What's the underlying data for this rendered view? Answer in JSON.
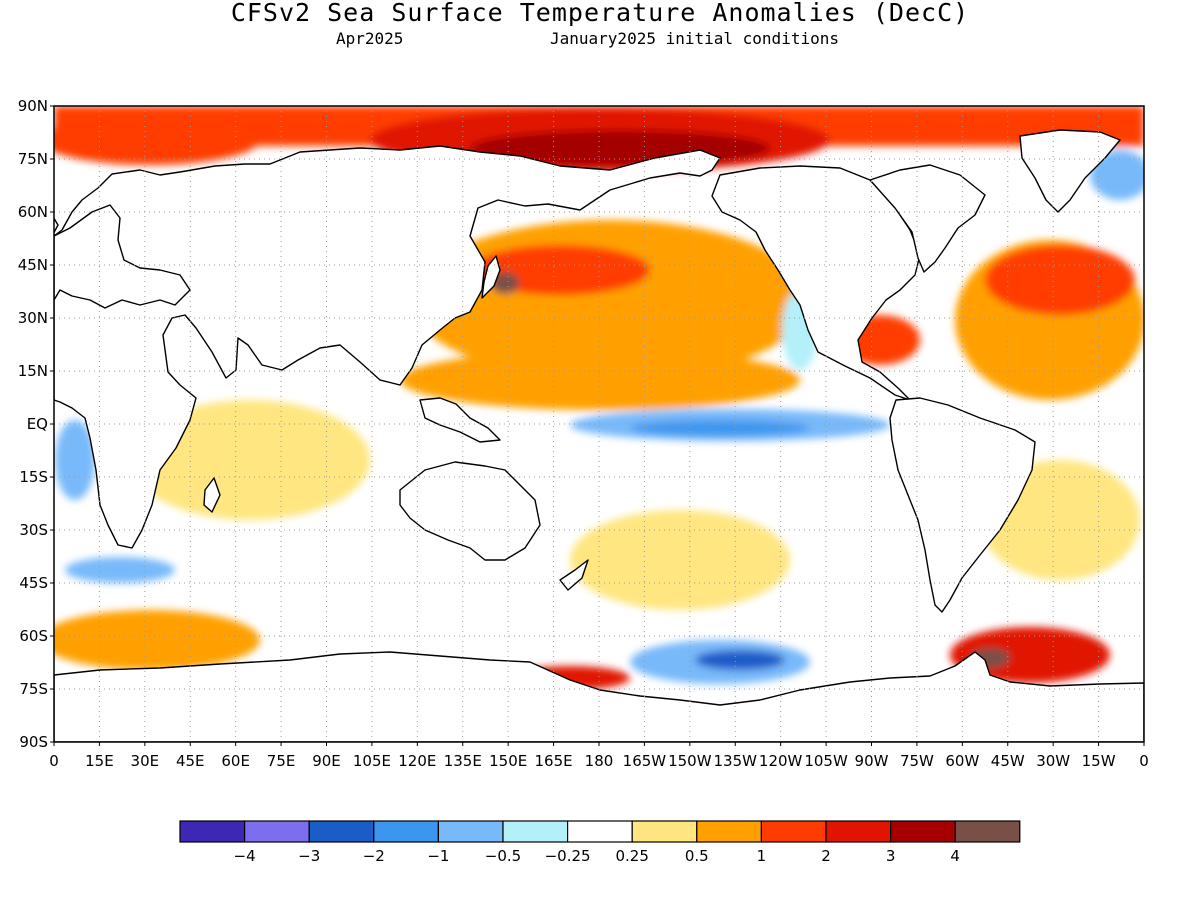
{
  "title": "CFSv2 Sea Surface Temperature Anomalies (DecC)",
  "forecast_month": "Apr2025",
  "initial_conditions": "January2025 initial conditions",
  "lat_labels": [
    "90N",
    "75N",
    "60N",
    "45N",
    "30N",
    "15N",
    "EQ",
    "15S",
    "30S",
    "45S",
    "60S",
    "75S",
    "90S"
  ],
  "lon_labels": [
    "0",
    "15E",
    "30E",
    "45E",
    "60E",
    "75E",
    "90E",
    "105E",
    "120E",
    "135E",
    "150E",
    "165E",
    "180",
    "165W",
    "150W",
    "135W",
    "120W",
    "105W",
    "90W",
    "75W",
    "60W",
    "45W",
    "30W",
    "15W",
    "0"
  ],
  "colorbar": {
    "colors": [
      "#3c28b4",
      "#7d6eef",
      "#1a5cc8",
      "#3c96f0",
      "#78b9fa",
      "#b4f0fa",
      "#ffffff",
      "#ffe680",
      "#ffa000",
      "#ff3c00",
      "#e11400",
      "#a50000",
      "#7a5046"
    ],
    "labels": [
      "-4",
      "-3",
      "-2",
      "-1",
      "-0.5",
      "-0.25",
      "0.25",
      "0.5",
      "1",
      "2",
      "3",
      "4"
    ]
  },
  "colors": {
    "land": "#ffffff",
    "coast": "#000000",
    "grid": "#9a9a9a"
  }
}
